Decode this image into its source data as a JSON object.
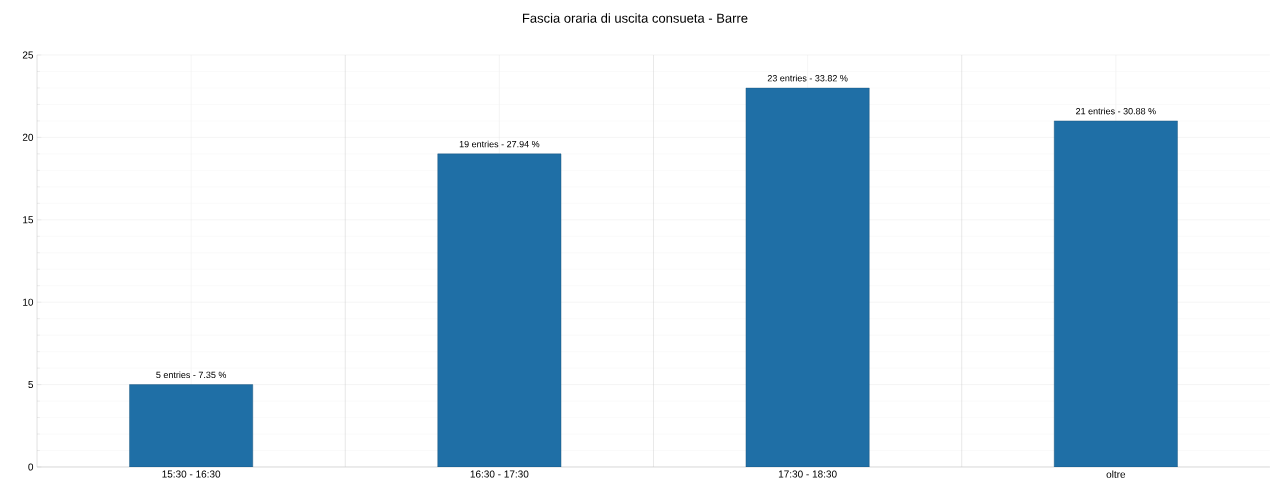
{
  "chart_data": {
    "type": "bar",
    "title": "Fascia oraria di uscita consueta - Barre",
    "categories": [
      "15:30 - 16:30",
      "16:30 - 17:30",
      "17:30 - 18:30",
      "oltre"
    ],
    "values": [
      5,
      19,
      23,
      21
    ],
    "value_labels": [
      "5 entries - 7.35 %",
      "19 entries - 27.94 %",
      "23 entries - 33.82 %",
      "21 entries - 30.88 %"
    ],
    "color": "#1f6fa6",
    "ylim": [
      0,
      25
    ],
    "yticks": [
      0,
      5,
      10,
      15,
      20,
      25
    ],
    "grid": true
  }
}
